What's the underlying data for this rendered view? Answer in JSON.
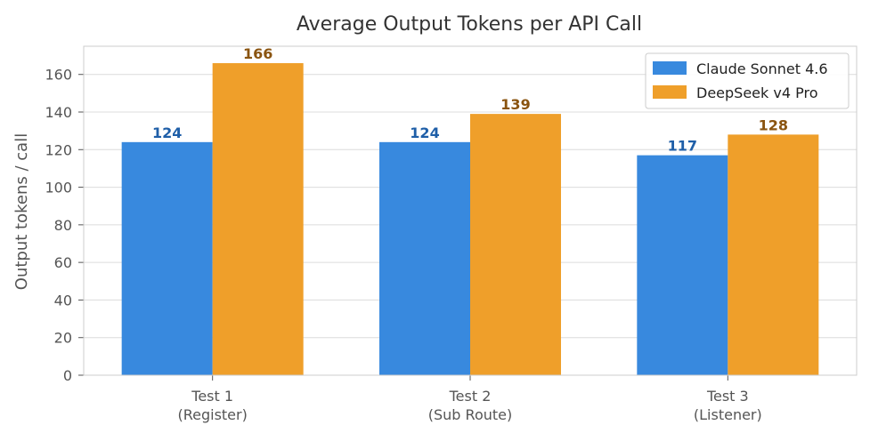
{
  "chart_data": {
    "type": "bar",
    "title": "Average Output Tokens per API Call",
    "xlabel": "",
    "ylabel": "Output tokens / call",
    "categories": [
      [
        "Test 1",
        "(Register)"
      ],
      [
        "Test 2",
        "(Sub Route)"
      ],
      [
        "Test 3",
        "(Listener)"
      ]
    ],
    "series": [
      {
        "name": "Claude Sonnet 4.6",
        "values": [
          124,
          124,
          117
        ],
        "color": "#3889de",
        "label_color": "#1f5fa8"
      },
      {
        "name": "DeepSeek v4 Pro",
        "values": [
          166,
          139,
          128
        ],
        "color": "#ef9f2a",
        "label_color": "#8a5410"
      }
    ],
    "value_labels": [
      [
        "124",
        "124",
        "117"
      ],
      [
        "166",
        "139",
        "128"
      ]
    ],
    "ylim": [
      0,
      175
    ],
    "yticks": [
      0,
      20,
      40,
      60,
      80,
      100,
      120,
      140,
      160
    ],
    "grid": true,
    "legend_position": "top-right"
  }
}
